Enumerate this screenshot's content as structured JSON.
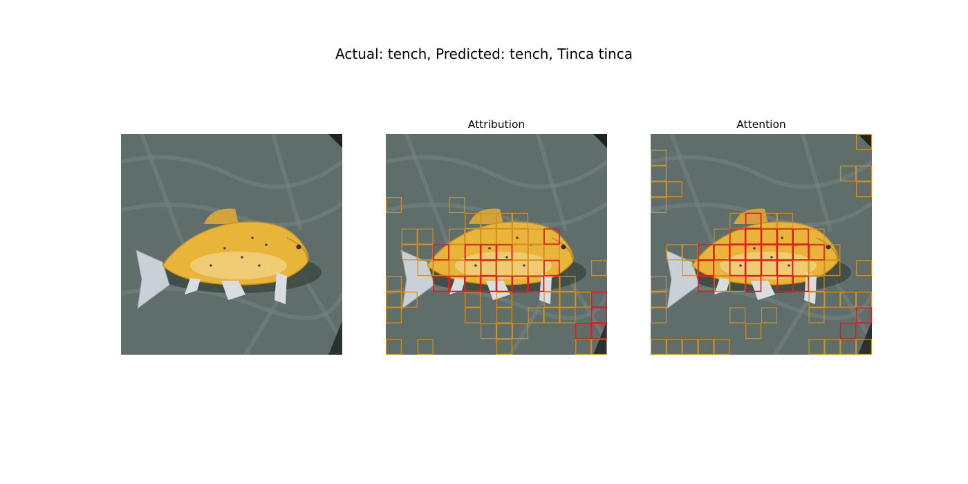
{
  "figure": {
    "suptitle": "Actual: tench, Predicted: tench, Tinca tinca"
  },
  "panels": [
    {
      "title": ""
    },
    {
      "title": "Attribution"
    },
    {
      "title": "Attention"
    }
  ],
  "colors": {
    "background": "#5f6e6a",
    "fish": "#e8b43a",
    "patch_low": "#d4901c",
    "patch_high": "#e21c1c"
  },
  "grid": {
    "cols": 14,
    "rows": 14
  },
  "attribution_patches": {
    "orange": [
      [
        0,
        4
      ],
      [
        4,
        4
      ],
      [
        1,
        6
      ],
      [
        2,
        6
      ],
      [
        4,
        6
      ],
      [
        5,
        6
      ],
      [
        6,
        6
      ],
      [
        7,
        6
      ],
      [
        8,
        6
      ],
      [
        9,
        6
      ],
      [
        1,
        7
      ],
      [
        2,
        7
      ],
      [
        4,
        7
      ],
      [
        5,
        7
      ],
      [
        6,
        7
      ],
      [
        7,
        7
      ],
      [
        8,
        7
      ],
      [
        9,
        7
      ],
      [
        10,
        7
      ],
      [
        2,
        8
      ],
      [
        4,
        8
      ],
      [
        5,
        8
      ],
      [
        7,
        8
      ],
      [
        8,
        8
      ],
      [
        9,
        8
      ],
      [
        10,
        8
      ],
      [
        13,
        8
      ],
      [
        0,
        9
      ],
      [
        10,
        9
      ],
      [
        11,
        9
      ],
      [
        0,
        10
      ],
      [
        1,
        10
      ],
      [
        5,
        10
      ],
      [
        7,
        10
      ],
      [
        10,
        10
      ],
      [
        11,
        10
      ],
      [
        12,
        10
      ],
      [
        0,
        11
      ],
      [
        5,
        11
      ],
      [
        7,
        11
      ],
      [
        9,
        11
      ],
      [
        10,
        11
      ],
      [
        11,
        11
      ],
      [
        6,
        12
      ],
      [
        7,
        12
      ],
      [
        8,
        12
      ],
      [
        12,
        12
      ],
      [
        0,
        13
      ],
      [
        2,
        13
      ],
      [
        7,
        13
      ],
      [
        12,
        13
      ],
      [
        13,
        13
      ],
      [
        5,
        5
      ],
      [
        6,
        5
      ],
      [
        7,
        5
      ],
      [
        8,
        5
      ],
      [
        3,
        8
      ],
      [
        3,
        7
      ]
    ],
    "red": [
      [
        10,
        6
      ],
      [
        3,
        7
      ],
      [
        5,
        7
      ],
      [
        6,
        7
      ],
      [
        7,
        7
      ],
      [
        6,
        8
      ],
      [
        10,
        8
      ],
      [
        3,
        9
      ],
      [
        4,
        9
      ],
      [
        5,
        9
      ],
      [
        6,
        9
      ],
      [
        7,
        9
      ],
      [
        8,
        9
      ],
      [
        9,
        9
      ],
      [
        13,
        10
      ],
      [
        13,
        11
      ],
      [
        12,
        12
      ],
      [
        13,
        12
      ]
    ]
  },
  "attention_patches": {
    "orange": [
      [
        13,
        0
      ],
      [
        0,
        1
      ],
      [
        12,
        2
      ],
      [
        13,
        2
      ],
      [
        0,
        2
      ],
      [
        0,
        3
      ],
      [
        1,
        3
      ],
      [
        13,
        3
      ],
      [
        0,
        4
      ],
      [
        5,
        5
      ],
      [
        6,
        5
      ],
      [
        7,
        5
      ],
      [
        8,
        5
      ],
      [
        4,
        6
      ],
      [
        10,
        6
      ],
      [
        1,
        7
      ],
      [
        2,
        7
      ],
      [
        4,
        7
      ],
      [
        10,
        7
      ],
      [
        11,
        7
      ],
      [
        2,
        8
      ],
      [
        3,
        8
      ],
      [
        4,
        8
      ],
      [
        5,
        8
      ],
      [
        6,
        8
      ],
      [
        7,
        8
      ],
      [
        8,
        8
      ],
      [
        9,
        8
      ],
      [
        10,
        8
      ],
      [
        11,
        8
      ],
      [
        13,
        8
      ],
      [
        0,
        9
      ],
      [
        4,
        9
      ],
      [
        5,
        9
      ],
      [
        9,
        9
      ],
      [
        10,
        9
      ],
      [
        0,
        10
      ],
      [
        10,
        10
      ],
      [
        11,
        10
      ],
      [
        12,
        10
      ],
      [
        13,
        10
      ],
      [
        0,
        11
      ],
      [
        5,
        11
      ],
      [
        7,
        11
      ],
      [
        10,
        11
      ],
      [
        6,
        12
      ],
      [
        12,
        12
      ],
      [
        0,
        13
      ],
      [
        1,
        13
      ],
      [
        2,
        13
      ],
      [
        3,
        13
      ],
      [
        4,
        13
      ],
      [
        10,
        13
      ],
      [
        11,
        13
      ],
      [
        12,
        13
      ],
      [
        13,
        13
      ]
    ],
    "red": [
      [
        6,
        5
      ],
      [
        5,
        6
      ],
      [
        6,
        6
      ],
      [
        7,
        6
      ],
      [
        8,
        6
      ],
      [
        9,
        6
      ],
      [
        3,
        7
      ],
      [
        4,
        7
      ],
      [
        5,
        7
      ],
      [
        6,
        7
      ],
      [
        7,
        7
      ],
      [
        8,
        7
      ],
      [
        9,
        7
      ],
      [
        10,
        7
      ],
      [
        3,
        8
      ],
      [
        5,
        8
      ],
      [
        6,
        8
      ],
      [
        7,
        8
      ],
      [
        8,
        8
      ],
      [
        3,
        9
      ],
      [
        6,
        9
      ],
      [
        8,
        9
      ],
      [
        9,
        9
      ],
      [
        13,
        11
      ],
      [
        12,
        12
      ]
    ]
  }
}
